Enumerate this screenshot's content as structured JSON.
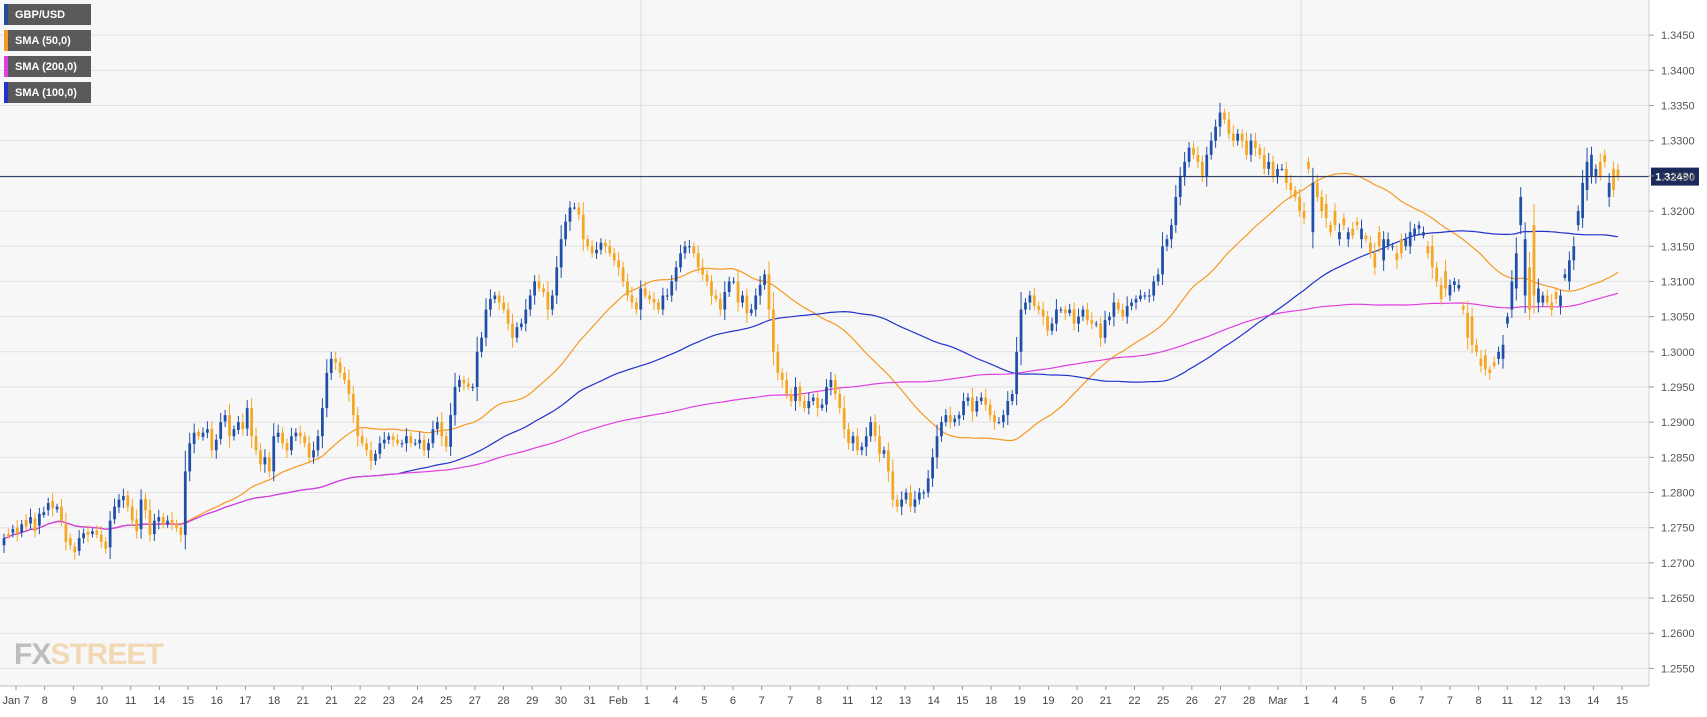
{
  "legend": [
    {
      "label": "GBP/USD",
      "color": "#1f4e9c"
    },
    {
      "label": "SMA (50,0)",
      "color": "#f59a23"
    },
    {
      "label": "SMA (200,0)",
      "color": "#e040e0"
    },
    {
      "label": "SMA (100,0)",
      "color": "#2233cc"
    }
  ],
  "watermark": {
    "fx": "FX",
    "street": "STREET"
  },
  "current_price_label": "1.32490",
  "chart_data": {
    "type": "candlestick",
    "title": "",
    "ylim": [
      1.2525,
      1.35
    ],
    "y_ticks": [
      "1.2550",
      "1.2600",
      "1.2650",
      "1.2700",
      "1.2750",
      "1.2800",
      "1.2850",
      "1.2900",
      "1.2950",
      "1.3000",
      "1.3050",
      "1.3100",
      "1.3150",
      "1.3200",
      "1.3250",
      "1.3300",
      "1.3350",
      "1.3400",
      "1.3450"
    ],
    "x_ticks": [
      "Jan 7",
      "8",
      "9",
      "10",
      "11",
      "14",
      "15",
      "16",
      "17",
      "18",
      "21",
      "21",
      "22",
      "23",
      "24",
      "25",
      "27",
      "28",
      "29",
      "30",
      "31",
      "Feb",
      "1",
      "4",
      "5",
      "6",
      "7",
      "7",
      "8",
      "11",
      "12",
      "13",
      "14",
      "15",
      "18",
      "19",
      "19",
      "20",
      "21",
      "22",
      "25",
      "26",
      "27",
      "28",
      "Mar",
      "1",
      "4",
      "5",
      "6",
      "7",
      "7",
      "8",
      "11",
      "12",
      "13",
      "14",
      "15"
    ],
    "current_price": 1.3249,
    "colors": {
      "up": "#1f4fa8",
      "down": "#f5a623",
      "sma50": "#f59a23",
      "sma100": "#2233cc",
      "sma200": "#e040e0",
      "price_line": "#1b2a5a"
    },
    "close": [
      1.2735,
      1.2738,
      1.2748,
      1.2742,
      1.2755,
      1.2752,
      1.2765,
      1.2745,
      1.277,
      1.2772,
      1.2785,
      1.2778,
      1.278,
      1.276,
      1.273,
      1.2725,
      1.2715,
      1.2735,
      1.2742,
      1.274,
      1.2745,
      1.274,
      1.273,
      1.272,
      1.276,
      1.278,
      1.279,
      1.2795,
      1.278,
      1.276,
      1.2745,
      1.279,
      1.2775,
      1.274,
      1.276,
      1.2765,
      1.2755,
      1.276,
      1.2755,
      1.275,
      1.274,
      1.283,
      1.287,
      1.2885,
      1.288,
      1.2885,
      1.289,
      1.286,
      1.2875,
      1.29,
      1.291,
      1.288,
      1.289,
      1.29,
      1.289,
      1.292,
      1.288,
      1.286,
      1.284,
      1.285,
      1.283,
      1.288,
      1.2885,
      1.287,
      1.286,
      1.288,
      1.2885,
      1.288,
      1.287,
      1.285,
      1.286,
      1.288,
      1.292,
      1.297,
      1.299,
      1.2985,
      1.297,
      1.296,
      1.294,
      1.291,
      1.288,
      1.287,
      1.286,
      1.2845,
      1.2855,
      1.287,
      1.2875,
      1.288,
      1.2875,
      1.287,
      1.287,
      1.288,
      1.287,
      1.287,
      1.2875,
      1.286,
      1.287,
      1.289,
      1.29,
      1.288,
      1.2865,
      1.291,
      1.295,
      1.296,
      1.2955,
      1.295,
      1.295,
      1.3,
      1.302,
      1.306,
      1.3075,
      1.308,
      1.307,
      1.306,
      1.304,
      1.302,
      1.3035,
      1.304,
      1.306,
      1.308,
      1.31,
      1.309,
      1.3085,
      1.306,
      1.308,
      1.312,
      1.316,
      1.3185,
      1.3205,
      1.3205,
      1.3195,
      1.316,
      1.315,
      1.314,
      1.3145,
      1.3155,
      1.315,
      1.314,
      1.313,
      1.312,
      1.31,
      1.308,
      1.307,
      1.306,
      1.309,
      1.308,
      1.3075,
      1.307,
      1.306,
      1.308,
      1.308,
      1.31,
      1.312,
      1.314,
      1.315,
      1.315,
      1.314,
      1.312,
      1.311,
      1.31,
      1.308,
      1.3075,
      1.306,
      1.3085,
      1.31,
      1.31,
      1.307,
      1.308,
      1.3055,
      1.306,
      1.308,
      1.3095,
      1.311,
      1.306,
      1.3,
      1.297,
      1.296,
      1.294,
      1.293,
      1.295,
      1.293,
      1.292,
      1.293,
      1.2935,
      1.292,
      1.2925,
      1.295,
      1.296,
      1.294,
      1.292,
      1.289,
      1.287,
      1.288,
      1.286,
      1.2865,
      1.288,
      1.29,
      1.288,
      1.2855,
      1.286,
      1.283,
      1.279,
      1.278,
      1.279,
      1.28,
      1.278,
      1.279,
      1.28,
      1.28,
      1.282,
      1.285,
      1.288,
      1.29,
      1.291,
      1.29,
      1.2905,
      1.291,
      1.293,
      1.2935,
      1.2915,
      1.293,
      1.2935,
      1.2925,
      1.291,
      1.29,
      1.29,
      1.291,
      1.293,
      1.294,
      1.3,
      1.306,
      1.307,
      1.308,
      1.3065,
      1.306,
      1.305,
      1.303,
      1.304,
      1.306,
      1.306,
      1.3055,
      1.306,
      1.304,
      1.305,
      1.306,
      1.3045,
      1.304,
      1.304,
      1.302,
      1.3045,
      1.305,
      1.307,
      1.306,
      1.305,
      1.3065,
      1.307,
      1.3075,
      1.308,
      1.308,
      1.308,
      1.31,
      1.311,
      1.315,
      1.316,
      1.318,
      1.322,
      1.325,
      1.327,
      1.329,
      1.328,
      1.327,
      1.325,
      1.328,
      1.33,
      1.332,
      1.334,
      1.333,
      1.331,
      1.33,
      1.331,
      1.33,
      1.328,
      1.33,
      1.329,
      1.328,
      1.326,
      1.327,
      1.325,
      1.326,
      1.326,
      1.324,
      1.323,
      1.322,
      1.32,
      1.319,
      1.326,
      1.324,
      1.322,
      1.32,
      1.319,
      1.317,
      1.318,
      1.317,
      1.318,
      1.317,
      1.3165,
      1.318,
      1.3175,
      1.316,
      1.314,
      1.312,
      1.315,
      1.316,
      1.316,
      1.315,
      1.313,
      1.314,
      1.316,
      1.317,
      1.3175,
      1.318,
      1.317,
      1.314,
      1.312,
      1.31,
      1.3075,
      1.309,
      1.3095,
      1.31,
      1.3095,
      1.306,
      1.302,
      1.301,
      1.3,
      1.298,
      1.2975,
      1.297,
      1.298,
      1.3,
      1.301,
      1.305,
      1.31,
      1.314,
      1.322,
      1.316,
      1.306,
      1.308,
      1.309,
      1.308,
      1.307,
      1.306,
      1.3075,
      1.308,
      1.311,
      1.313,
      1.315,
      1.32,
      1.324,
      1.327,
      1.328,
      1.326,
      1.325,
      1.327,
      1.324,
      1.323,
      1.3249
    ],
    "open_offsets": [
      -0.001,
      0.0003,
      -0.0005,
      0.0008,
      -0.0012,
      0.0009,
      -0.0009,
      0.0018,
      -0.0017,
      -0.0004,
      -0.001,
      0.001,
      -0.0004,
      0.002,
      0.0025,
      0.001,
      0.0008,
      -0.0018,
      -0.0007,
      0.0004,
      -0.0004,
      0.0006,
      0.001,
      0.001,
      -0.0038,
      -0.0018,
      -0.0011,
      -0.0006,
      0.0016,
      0.002,
      0.0017,
      -0.0042,
      0.0016,
      0.0035,
      -0.0019,
      -0.0006,
      0.001,
      -0.0005,
      0.0006,
      0.0006,
      0.001,
      -0.009,
      -0.004,
      -0.0016,
      0.0006,
      -0.0006,
      -0.0005,
      0.003,
      -0.0015,
      -0.0024,
      -0.0009,
      0.003,
      -0.001,
      -0.0011,
      0.001,
      -0.0029,
      0.004,
      0.002,
      0.002,
      -0.001,
      0.002,
      -0.005,
      -0.0006,
      0.0015,
      0.001,
      -0.002,
      -0.0005,
      0.0005,
      0.001,
      0.002,
      -0.001,
      -0.002,
      -0.004,
      -0.005,
      -0.002,
      0.0005,
      0.0015,
      0.001,
      0.002,
      0.003,
      0.003,
      0.001,
      0.001,
      0.0015,
      -0.001,
      -0.0015,
      -0.0005,
      -0.0005,
      0.0005,
      0.0005,
      0.0,
      -0.001,
      0.001,
      0.0,
      -0.0005,
      0.0015,
      -0.001,
      -0.002,
      -0.001,
      0.002,
      0.0015,
      -0.0045,
      -0.004,
      -0.001,
      0.0005,
      0.0005,
      0.0,
      -0.005,
      -0.002,
      -0.004,
      -0.0015,
      -0.0005,
      0.001,
      0.001,
      0.002,
      0.002,
      -0.0015,
      -0.0005,
      -0.002,
      -0.002,
      -0.002,
      0.001,
      0.0005,
      0.0025,
      -0.002,
      -0.004,
      -0.004,
      -0.0025,
      -0.002,
      0.0,
      0.001,
      0.0035,
      0.001,
      0.001,
      -0.0005,
      -0.001,
      0.0005,
      0.001,
      0.001,
      0.001,
      0.002,
      0.002,
      0.001,
      0.001,
      -0.003,
      0.001,
      0.0005,
      0.0005,
      0.001,
      -0.002,
      0.0,
      -0.002,
      -0.002,
      -0.002,
      -0.001,
      0.0,
      0.001,
      0.002,
      0.001,
      0.001,
      0.002,
      0.0005,
      0.0015,
      -0.0025,
      -0.0015,
      0.0,
      0.003,
      -0.001,
      0.0025,
      -0.0005,
      -0.002,
      -0.0015,
      -0.0015,
      0.005,
      0.006,
      0.003,
      0.001,
      0.002,
      0.001,
      -0.002,
      0.002,
      0.001,
      -0.001,
      -0.0005,
      0.0015,
      -0.0005,
      -0.0025,
      -0.001,
      0.002,
      0.002,
      0.003,
      0.002,
      -0.001,
      0.002,
      -0.0005,
      -0.0015,
      -0.002,
      0.002,
      0.0025,
      -0.0005,
      0.003,
      0.004,
      0.001,
      -0.001,
      -0.001,
      0.002,
      -0.001,
      -0.001,
      0.0,
      -0.002,
      -0.003,
      -0.003,
      -0.002,
      -0.001,
      0.001,
      -0.0005,
      -0.0005,
      -0.002,
      -0.0005,
      0.002,
      -0.0015,
      -0.0005,
      0.001,
      0.0015,
      0.001,
      0.0,
      -0.001,
      -0.002,
      -0.001,
      -0.006,
      -0.006,
      -0.001,
      -0.001,
      0.0015,
      0.0005,
      0.001,
      0.002,
      -0.001,
      -0.002,
      0.0,
      0.0005,
      -0.0005,
      0.002,
      -0.001,
      -0.001,
      0.0015,
      0.0005,
      0.0,
      0.002,
      -0.0025,
      -0.0005,
      -0.002,
      0.001,
      0.001,
      -0.0015,
      -0.0005,
      -0.0005,
      -0.0005,
      0.0,
      0.0,
      -0.002,
      -0.001,
      -0.004,
      -0.001,
      -0.002,
      -0.004,
      -0.003,
      -0.002,
      -0.002,
      0.001,
      0.001,
      0.002,
      -0.003,
      -0.002,
      -0.002,
      -0.002,
      0.001,
      0.002,
      0.001,
      -0.001,
      0.001,
      0.002,
      -0.002,
      0.001,
      0.001,
      0.002,
      -0.001,
      0.002,
      -0.001,
      0.0,
      0.002,
      0.001,
      0.001,
      0.002,
      0.001,
      0.001,
      -0.007,
      0.002,
      0.002,
      0.002,
      0.001,
      0.002,
      -0.001,
      0.001,
      -0.001,
      0.001,
      0.0005,
      -0.0015,
      0.0005,
      0.0015,
      0.002,
      0.002,
      -0.003,
      -0.001,
      0.0,
      0.001,
      0.002,
      -0.001,
      -0.002,
      -0.001,
      -0.0005,
      -0.0005,
      0.001,
      0.003,
      0.002,
      0.002,
      0.0025,
      -0.0015,
      -0.0005,
      -0.0005,
      0.0005,
      0.0035,
      0.004,
      0.001,
      0.001,
      0.002,
      0.0005,
      0.0005,
      -0.001,
      -0.002,
      -0.001,
      -0.004,
      -0.005,
      -0.004,
      -0.008,
      0.006,
      0.01,
      -0.002,
      -0.001,
      0.001,
      0.001,
      0.001,
      -0.0015,
      -0.0005,
      -0.003,
      -0.002,
      -0.002,
      -0.005,
      -0.004,
      -0.003,
      -0.001,
      0.002,
      0.001,
      -0.002,
      0.003,
      0.001,
      -0.0019
    ]
  }
}
